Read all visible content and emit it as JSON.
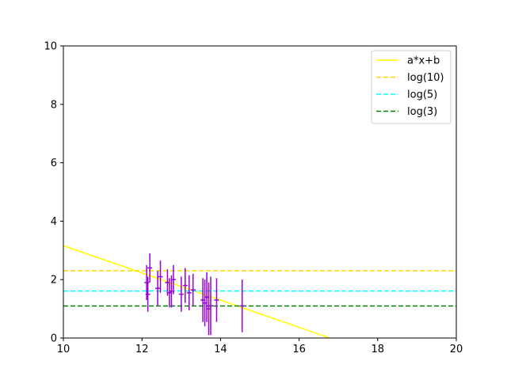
{
  "chart_data": {
    "type": "scatter",
    "title": "",
    "xlabel": "",
    "ylabel": "",
    "xlim": [
      10,
      20
    ],
    "ylim": [
      0,
      10
    ],
    "grid": false,
    "legend_position": "top-right",
    "x_ticks": [
      "10",
      "12",
      "14",
      "16",
      "18",
      "20"
    ],
    "y_ticks": [
      "0",
      "2",
      "4",
      "6",
      "8",
      "10"
    ],
    "series": [
      {
        "name": "a*x+b",
        "kind": "line",
        "style": "solid",
        "color": "#ffff00",
        "slope": -0.466,
        "intercept": 7.82
      },
      {
        "name": "log(10)",
        "kind": "hline",
        "style": "dashed",
        "color": "#ffd700",
        "y": 2.303
      },
      {
        "name": "log(5)",
        "kind": "hline",
        "style": "dashed",
        "color": "#00ffff",
        "y": 1.609
      },
      {
        "name": "log(3)",
        "kind": "hline",
        "style": "dashed",
        "color": "#008000",
        "y": 1.099
      }
    ],
    "points": {
      "color": "#9400d3",
      "data": [
        {
          "x": 12.12,
          "y": 1.9,
          "err": 0.6
        },
        {
          "x": 12.15,
          "y": 1.5,
          "err": 0.6
        },
        {
          "x": 12.2,
          "y": 2.4,
          "err": 0.5
        },
        {
          "x": 12.4,
          "y": 1.7,
          "err": 0.6
        },
        {
          "x": 12.47,
          "y": 2.1,
          "err": 0.55
        },
        {
          "x": 12.65,
          "y": 1.9,
          "err": 0.45
        },
        {
          "x": 12.7,
          "y": 1.55,
          "err": 0.5
        },
        {
          "x": 12.75,
          "y": 1.6,
          "err": 0.55
        },
        {
          "x": 12.8,
          "y": 2.0,
          "err": 0.5
        },
        {
          "x": 13.0,
          "y": 1.5,
          "err": 0.6
        },
        {
          "x": 13.1,
          "y": 1.8,
          "err": 0.6
        },
        {
          "x": 13.2,
          "y": 1.55,
          "err": 0.6
        },
        {
          "x": 13.3,
          "y": 1.65,
          "err": 0.55
        },
        {
          "x": 13.55,
          "y": 1.3,
          "err": 0.75
        },
        {
          "x": 13.6,
          "y": 1.2,
          "err": 0.8
        },
        {
          "x": 13.65,
          "y": 1.4,
          "err": 0.85
        },
        {
          "x": 13.7,
          "y": 1.0,
          "err": 0.9
        },
        {
          "x": 13.75,
          "y": 1.1,
          "err": 1.0
        },
        {
          "x": 13.9,
          "y": 1.3,
          "err": 0.75
        },
        {
          "x": 14.55,
          "y": 1.1,
          "err": 0.9
        }
      ]
    }
  }
}
